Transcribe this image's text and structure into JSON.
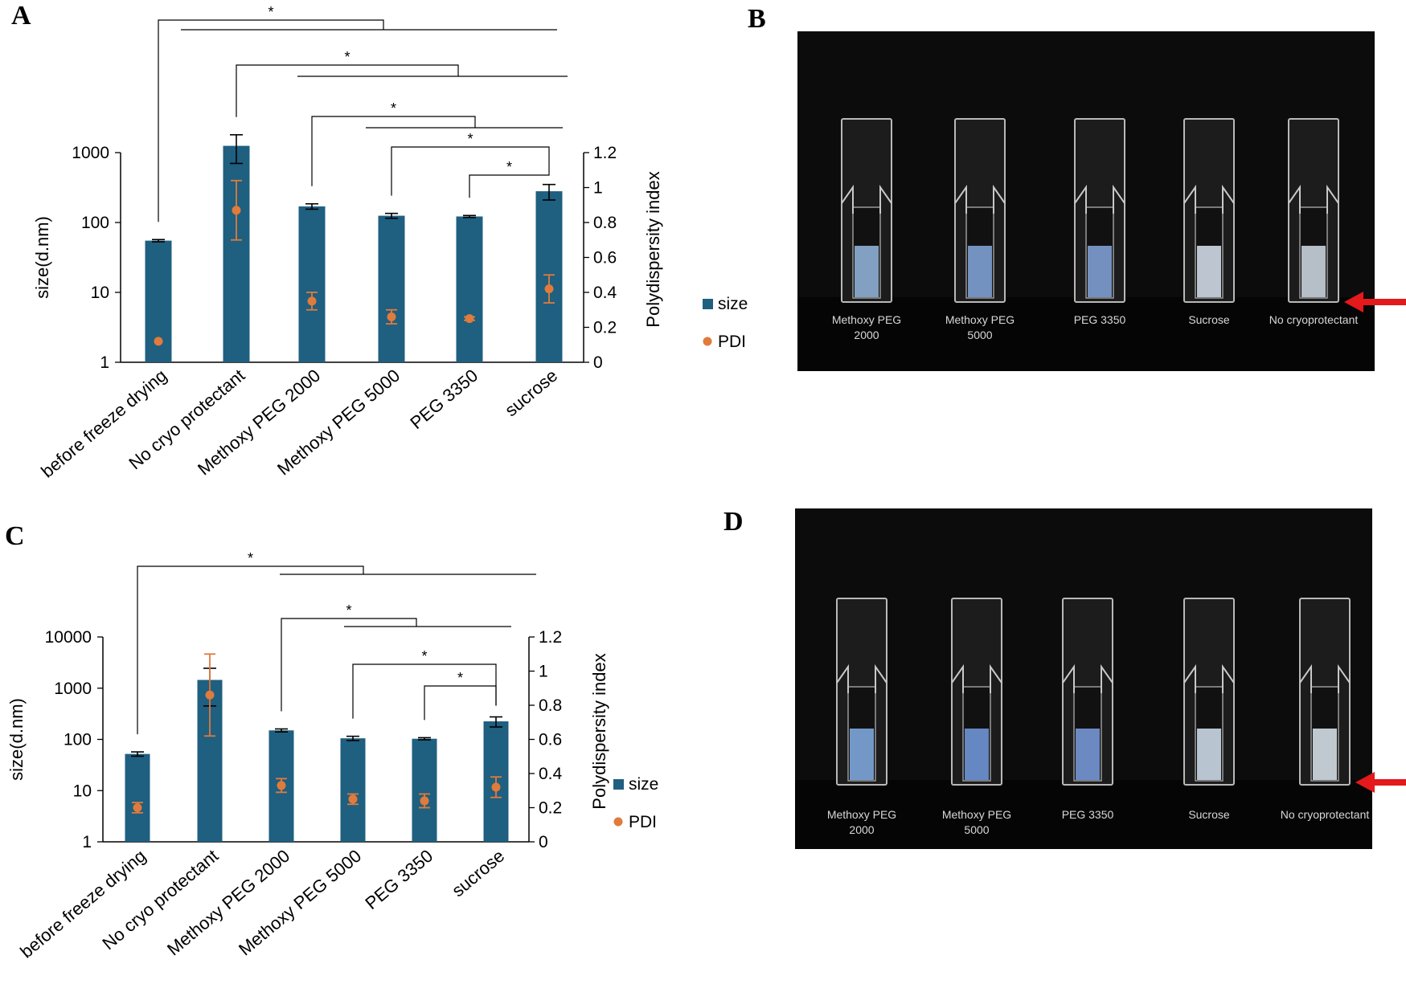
{
  "chart_data": [
    {
      "panel": "A",
      "type": "bar",
      "categories": [
        "before freeze drying",
        "No cryo protectant",
        "Methoxy PEG 2000",
        "Methoxy PEG 5000",
        "PEG 3350",
        "sucrose"
      ],
      "series": [
        {
          "name": "size",
          "axis": "left",
          "values": [
            55,
            1250,
            170,
            125,
            122,
            280
          ],
          "errors": [
            2,
            550,
            15,
            10,
            4,
            70
          ]
        },
        {
          "name": "PDI",
          "axis": "right",
          "values": [
            0.12,
            0.87,
            0.35,
            0.26,
            0.25,
            0.42
          ],
          "errors": [
            0.0,
            0.17,
            0.05,
            0.04,
            0.01,
            0.08
          ]
        }
      ],
      "xlabel": "",
      "ylabel": "size(d.nm)",
      "y2label": "Polydispersity index",
      "yscale": "log",
      "ylim": [
        1,
        3000
      ],
      "yticks": [
        "1",
        "10",
        "100",
        "1000"
      ],
      "y2lim": [
        0,
        1.2
      ],
      "y2ticks": [
        "0",
        "0.2",
        "0.4",
        "0.6",
        "0.8",
        "1",
        "1.2"
      ],
      "legend": "right",
      "significance": [
        {
          "from": 0,
          "to": [
            1,
            2,
            3,
            4,
            5
          ],
          "label": "*"
        },
        {
          "from": 1,
          "to": [
            2,
            3,
            4,
            5
          ],
          "label": "*"
        },
        {
          "from": 2,
          "to": [
            3,
            4,
            5
          ],
          "label": "*"
        },
        {
          "from": 3,
          "to": [
            5
          ],
          "label": "*"
        },
        {
          "from": 4,
          "to": [
            5
          ],
          "label": "*"
        }
      ]
    },
    {
      "panel": "C",
      "type": "bar",
      "categories": [
        "before freeze drying",
        "No cryo protectant",
        "Methoxy PEG 2000",
        "Methoxy PEG 5000",
        "PEG 3350",
        "sucrose"
      ],
      "series": [
        {
          "name": "size",
          "axis": "left",
          "values": [
            52,
            1450,
            150,
            105,
            103,
            225
          ],
          "errors": [
            5,
            1000,
            10,
            10,
            5,
            50
          ]
        },
        {
          "name": "PDI",
          "axis": "right",
          "values": [
            0.2,
            0.86,
            0.33,
            0.25,
            0.24,
            0.32
          ],
          "errors": [
            0.03,
            0.24,
            0.04,
            0.03,
            0.04,
            0.06
          ]
        }
      ],
      "xlabel": "",
      "ylabel": "size(d.nm)",
      "y2label": "Polydispersity index",
      "yscale": "log",
      "ylim": [
        1,
        10000
      ],
      "yticks": [
        "1",
        "10",
        "100",
        "1000",
        "10000"
      ],
      "y2lim": [
        0,
        1.2
      ],
      "y2ticks": [
        "0",
        "0.2",
        "0.4",
        "0.6",
        "0.8",
        "1",
        "1.2"
      ],
      "legend": "right",
      "significance": [
        {
          "from": 0,
          "to": [
            1,
            2,
            3,
            4,
            5
          ],
          "label": "*"
        },
        {
          "from": 2,
          "to": [
            3,
            4,
            5
          ],
          "label": "*"
        },
        {
          "from": 3,
          "to": [
            5
          ],
          "label": "*"
        },
        {
          "from": 4,
          "to": [
            5
          ],
          "label": "*"
        }
      ]
    }
  ],
  "panels": {
    "a": "A",
    "b": "B",
    "c": "C",
    "d": "D"
  },
  "photo_labels": {
    "B": [
      [
        "Methoxy PEG",
        "2000"
      ],
      [
        "Methoxy PEG",
        "5000"
      ],
      [
        "PEG 3350"
      ],
      [
        "Sucrose"
      ],
      [
        "No cryoprotectant"
      ]
    ],
    "D": [
      [
        "Methoxy PEG",
        "2000"
      ],
      [
        "Methoxy PEG",
        "5000"
      ],
      [
        "PEG 3350"
      ],
      [
        "Sucrose"
      ],
      [
        "No cryoprotectant"
      ]
    ]
  },
  "colors": {
    "size": "#1f5f80",
    "pdi": "#e07b3c",
    "arrow": "#e3191b",
    "photo_bg": "#0c0c0c"
  }
}
